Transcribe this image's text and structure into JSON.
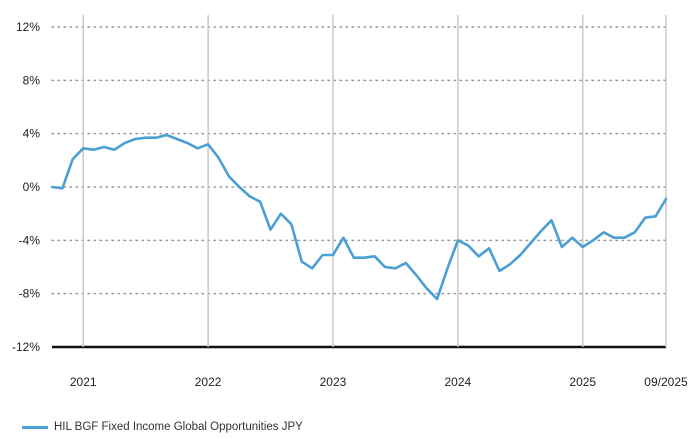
{
  "chart_data": {
    "type": "line",
    "title": "",
    "xlabel": "",
    "ylabel": "",
    "x_range": [
      "2020-10",
      "2025-09"
    ],
    "ylim": [
      -12,
      12
    ],
    "y_ticks": [
      12,
      8,
      4,
      0,
      -4,
      -8,
      -12
    ],
    "y_tick_labels": [
      "12%",
      "8%",
      "4%",
      "0%",
      "-4%",
      "-8%",
      "-12%"
    ],
    "x_ticks": [
      "2021-01",
      "2022-01",
      "2023-01",
      "2024-01",
      "2025-01",
      "2025-09"
    ],
    "x_tick_labels": [
      "2021",
      "2022",
      "2023",
      "2024",
      "2025",
      "09/2025"
    ],
    "grid": {
      "horizontal": "dotted",
      "vertical": "solid"
    },
    "legend_position": "bottom-left",
    "series": [
      {
        "name": "HIL BGF Fixed Income Global Opportunities JPY",
        "color": "#4a9fd4",
        "points": [
          [
            "2020-10",
            0.0
          ],
          [
            "2020-11",
            -0.1
          ],
          [
            "2020-12",
            2.1
          ],
          [
            "2021-01",
            2.9
          ],
          [
            "2021-02",
            2.8
          ],
          [
            "2021-03",
            3.0
          ],
          [
            "2021-04",
            2.8
          ],
          [
            "2021-05",
            3.3
          ],
          [
            "2021-06",
            3.6
          ],
          [
            "2021-07",
            3.7
          ],
          [
            "2021-08",
            3.7
          ],
          [
            "2021-09",
            3.9
          ],
          [
            "2021-10",
            3.6
          ],
          [
            "2021-11",
            3.3
          ],
          [
            "2021-12",
            2.9
          ],
          [
            "2022-01",
            3.2
          ],
          [
            "2022-02",
            2.2
          ],
          [
            "2022-03",
            0.8
          ],
          [
            "2022-04",
            0.0
          ],
          [
            "2022-05",
            -0.7
          ],
          [
            "2022-06",
            -1.1
          ],
          [
            "2022-07",
            -3.2
          ],
          [
            "2022-08",
            -2.0
          ],
          [
            "2022-09",
            -2.8
          ],
          [
            "2022-10",
            -5.6
          ],
          [
            "2022-11",
            -6.1
          ],
          [
            "2022-12",
            -5.1
          ],
          [
            "2023-01",
            -5.1
          ],
          [
            "2023-02",
            -3.8
          ],
          [
            "2023-03",
            -5.3
          ],
          [
            "2023-04",
            -5.3
          ],
          [
            "2023-05",
            -5.2
          ],
          [
            "2023-06",
            -6.0
          ],
          [
            "2023-07",
            -6.1
          ],
          [
            "2023-08",
            -5.7
          ],
          [
            "2023-09",
            -6.6
          ],
          [
            "2023-10",
            -7.6
          ],
          [
            "2023-11",
            -8.4
          ],
          [
            "2023-12",
            -6.1
          ],
          [
            "2024-01",
            -4.0
          ],
          [
            "2024-02",
            -4.4
          ],
          [
            "2024-03",
            -5.2
          ],
          [
            "2024-04",
            -4.6
          ],
          [
            "2024-05",
            -6.3
          ],
          [
            "2024-06",
            -5.8
          ],
          [
            "2024-07",
            -5.1
          ],
          [
            "2024-08",
            -4.2
          ],
          [
            "2024-09",
            -3.3
          ],
          [
            "2024-10",
            -2.5
          ],
          [
            "2024-11",
            -4.5
          ],
          [
            "2024-12",
            -3.8
          ],
          [
            "2025-01",
            -4.5
          ],
          [
            "2025-02",
            -4.0
          ],
          [
            "2025-03",
            -3.4
          ],
          [
            "2025-04",
            -3.8
          ],
          [
            "2025-05",
            -3.8
          ],
          [
            "2025-06",
            -3.4
          ],
          [
            "2025-07",
            -2.3
          ],
          [
            "2025-08",
            -2.2
          ],
          [
            "2025-09",
            -0.9
          ]
        ]
      }
    ]
  }
}
